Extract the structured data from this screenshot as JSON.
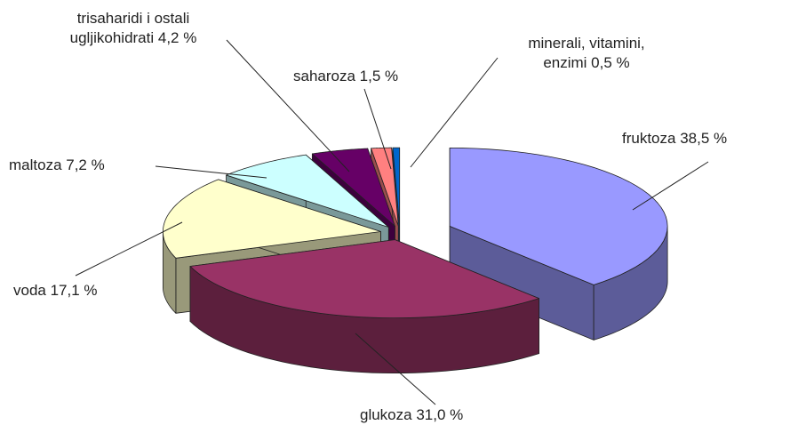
{
  "chart_data": {
    "type": "pie",
    "values": [
      38.5,
      31.0,
      17.1,
      7.2,
      4.2,
      1.5,
      0.5
    ],
    "value_labels": [
      "fruktoza 38,5 %",
      "glukoza 31,0 %",
      "voda 17,1 %",
      "maltoza 7,2 %",
      "trisaharidi i ostali ugljikohidrati 4,2 %",
      "saharoza 1,5 %",
      "minerali, vitamini, enzimi 0,5 %"
    ],
    "colors": [
      "#9999ff",
      "#993366",
      "#ffffcc",
      "#ccffff",
      "#660066",
      "#ff8080",
      "#0066cc"
    ]
  }
}
